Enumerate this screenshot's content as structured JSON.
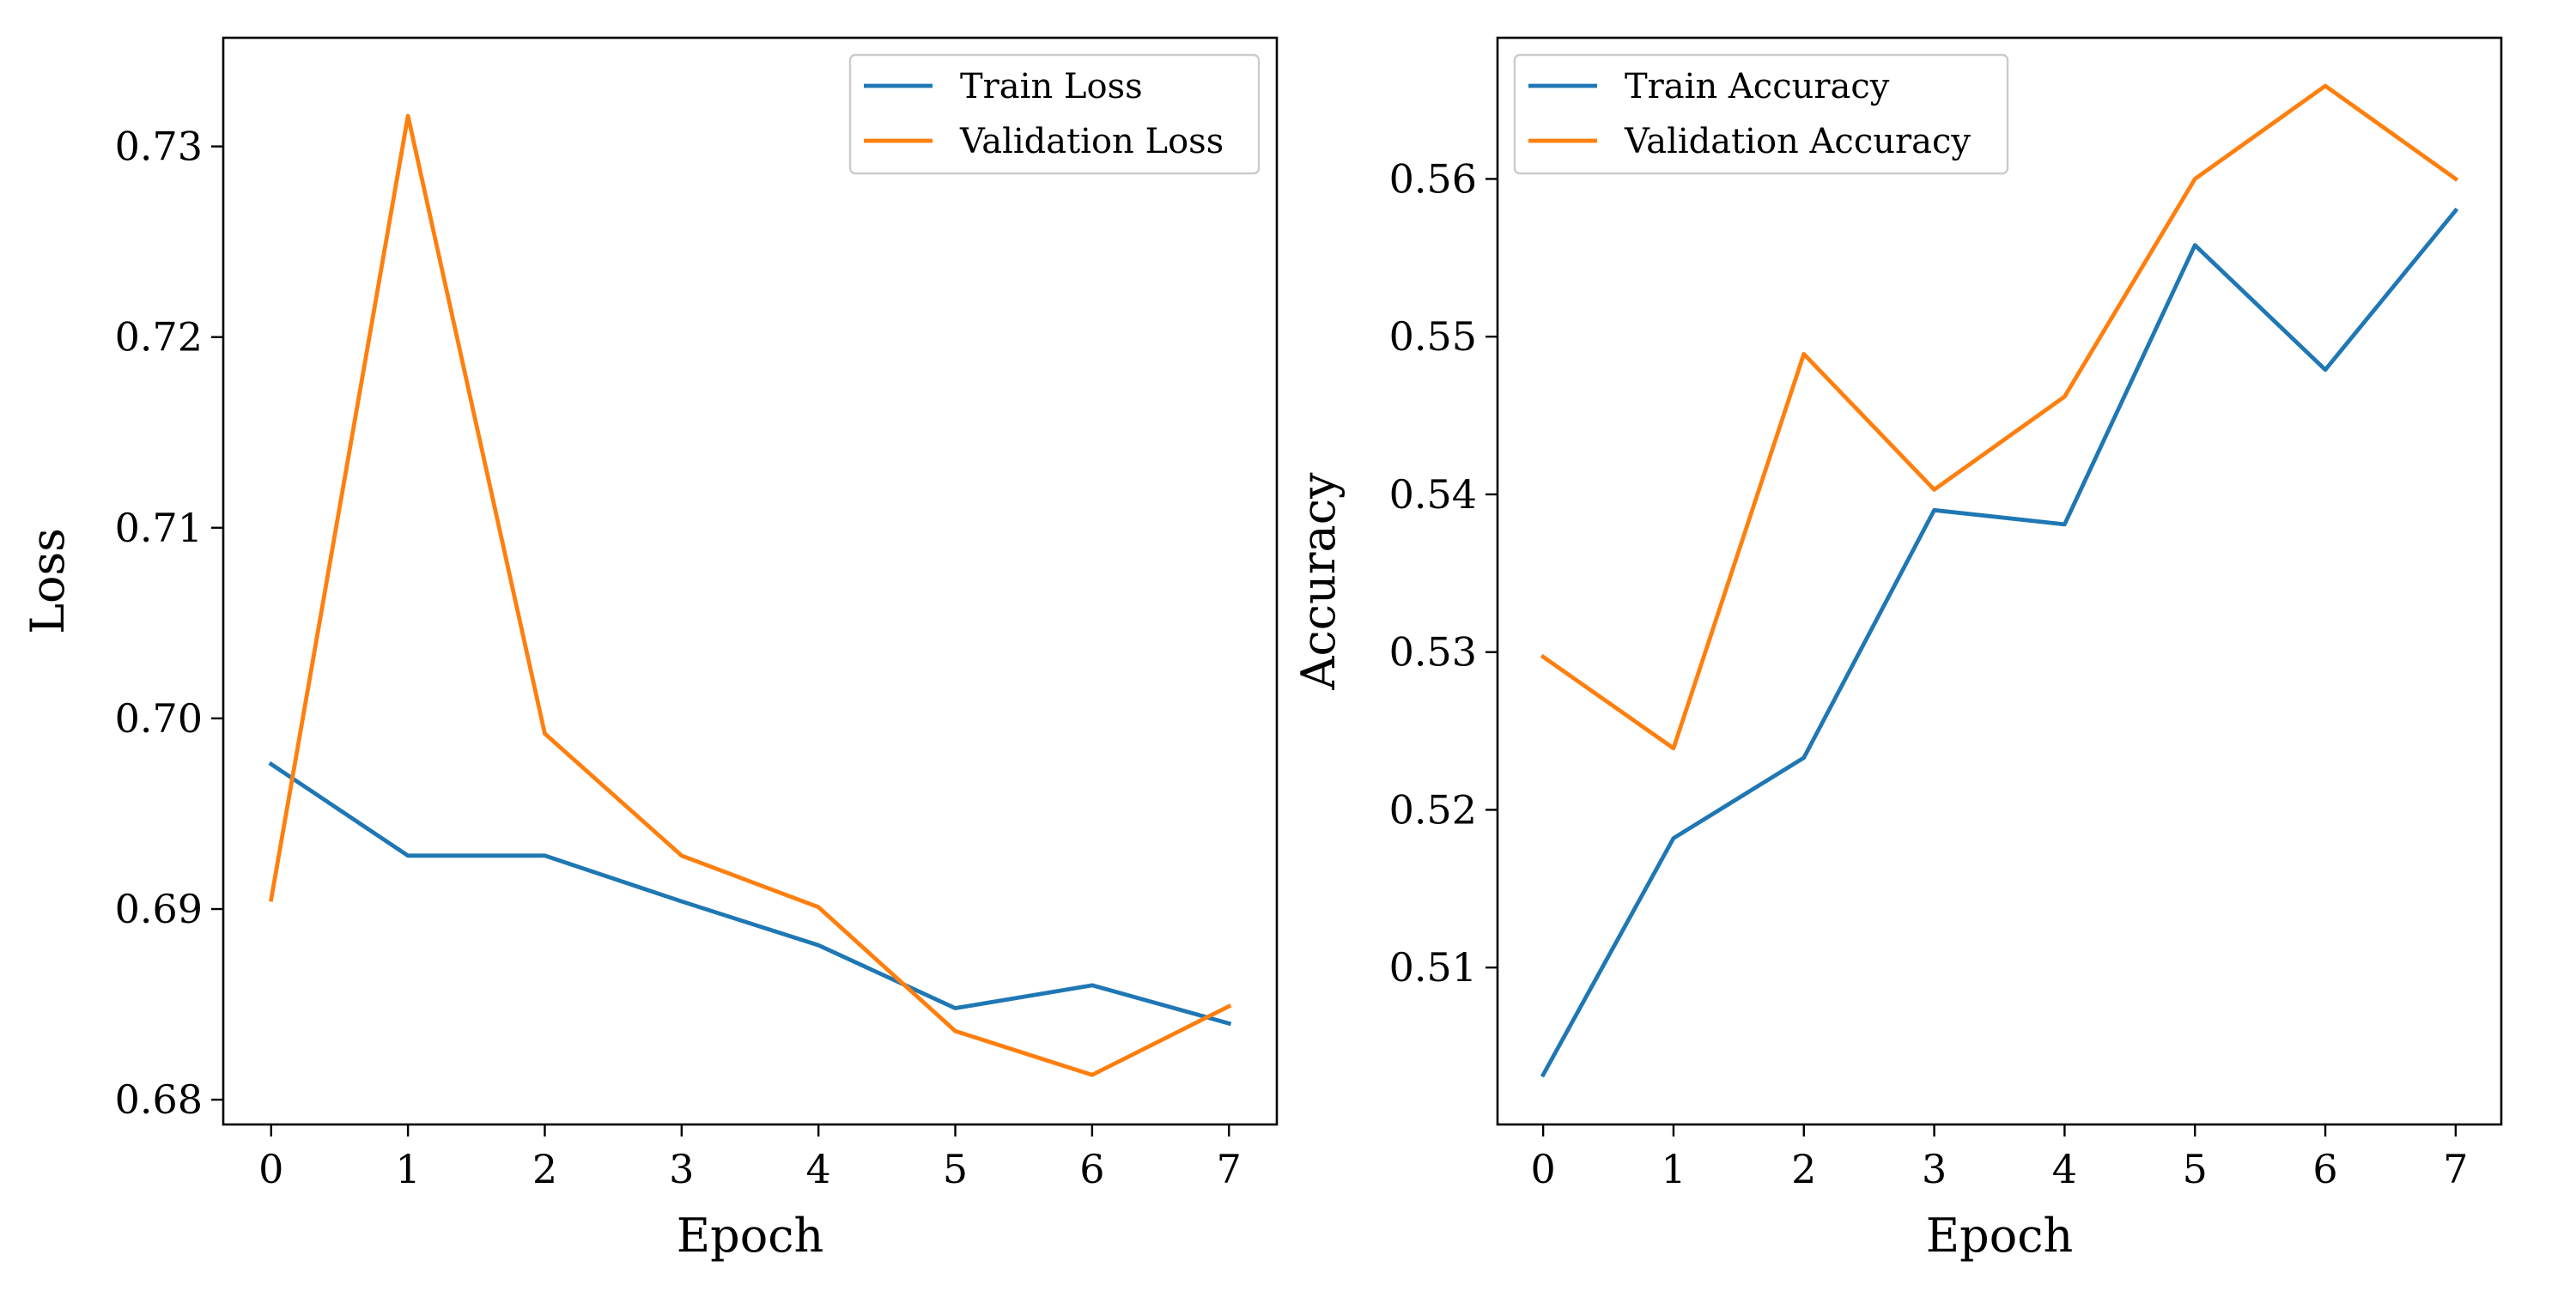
{
  "chart_data": [
    {
      "type": "line",
      "x": [
        0,
        1,
        2,
        3,
        4,
        5,
        6,
        7
      ],
      "xticks": [
        "0",
        "1",
        "2",
        "3",
        "4",
        "5",
        "6",
        "7"
      ],
      "xlim": [
        -0.35,
        7.35
      ],
      "xlabel": "Epoch",
      "ylabel": "Loss",
      "ylim": [
        0.6787,
        0.7357
      ],
      "yticks": [
        "0.68",
        "0.69",
        "0.70",
        "0.71",
        "0.72",
        "0.73"
      ],
      "grid": false,
      "legend": "top-right",
      "series": [
        {
          "name": "Train Loss",
          "color": "#1f77b4",
          "values": [
            0.6976,
            0.6928,
            0.6928,
            0.6904,
            0.6881,
            0.6848,
            0.686,
            0.684
          ]
        },
        {
          "name": "Validation Loss",
          "color": "#ff7f0e",
          "values": [
            0.6905,
            0.7316,
            0.6992,
            0.6928,
            0.6901,
            0.6836,
            0.6813,
            0.6849
          ]
        }
      ]
    },
    {
      "type": "line",
      "x": [
        0,
        1,
        2,
        3,
        4,
        5,
        6,
        7
      ],
      "xticks": [
        "0",
        "1",
        "2",
        "3",
        "4",
        "5",
        "6",
        "7"
      ],
      "xlim": [
        -0.35,
        7.35
      ],
      "xlabel": "Epoch",
      "ylabel": "Accuracy",
      "ylim": [
        0.50005,
        0.56895
      ],
      "yticks": [
        "0.51",
        "0.52",
        "0.53",
        "0.54",
        "0.55",
        "0.56"
      ],
      "grid": false,
      "legend": "top-left",
      "series": [
        {
          "name": "Train Accuracy",
          "color": "#1f77b4",
          "values": [
            0.5032,
            0.5182,
            0.5233,
            0.539,
            0.5381,
            0.5558,
            0.5479,
            0.558
          ]
        },
        {
          "name": "Validation Accuracy",
          "color": "#ff7f0e",
          "values": [
            0.5297,
            0.5239,
            0.5489,
            0.5403,
            0.5462,
            0.56,
            0.5659,
            0.56
          ]
        }
      ]
    }
  ]
}
